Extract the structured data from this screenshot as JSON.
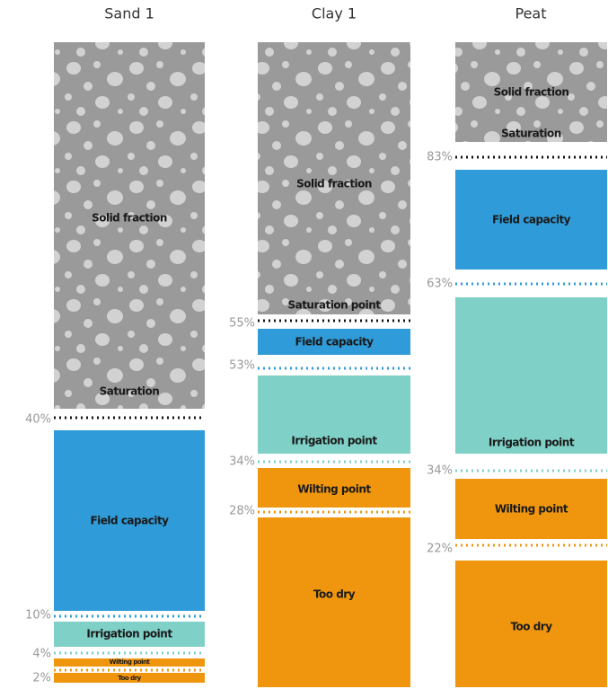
{
  "columns": [
    {
      "title": "Sand 1",
      "layers": [
        "Solid fraction",
        "Saturation",
        "Field capacity",
        "Irrigation point",
        "Wilting point",
        "Too dry"
      ],
      "thresholds": [
        "40%",
        "10%",
        "4%",
        "2%"
      ]
    },
    {
      "title": "Clay 1",
      "layers": [
        "Solid fraction",
        "Saturation point",
        "Field capacity",
        "Irrigation point",
        "Wilting point",
        "Too dry"
      ],
      "thresholds": [
        "55%",
        "53%",
        "34%",
        "28%"
      ]
    },
    {
      "title": "Peat",
      "layers": [
        "Solid fraction",
        "Saturation",
        "Field capacity",
        "Irrigation point",
        "Wilting point",
        "Too dry"
      ],
      "thresholds": [
        "83%",
        "63%",
        "34%",
        "22%"
      ]
    }
  ]
}
